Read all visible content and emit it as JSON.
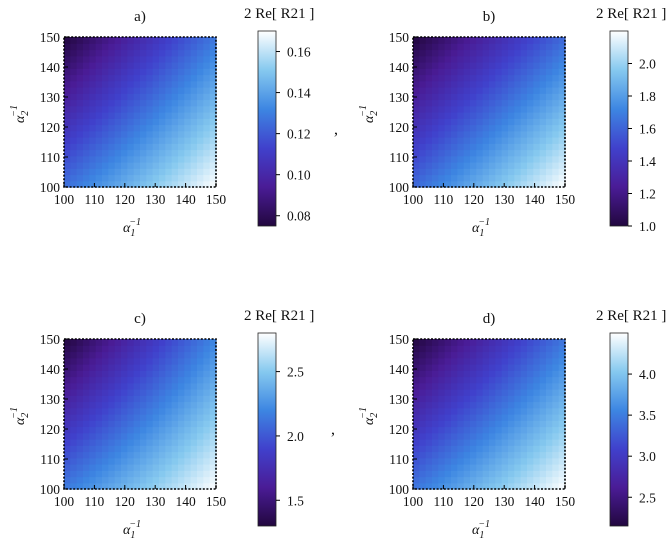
{
  "chart_data": [
    {
      "type": "heatmap",
      "title": "a)",
      "xlabel": "α₁⁻¹",
      "ylabel": "α₂⁻¹",
      "x_ticks": [
        100,
        110,
        120,
        130,
        140,
        150
      ],
      "y_ticks": [
        100,
        110,
        120,
        130,
        140,
        150
      ],
      "xlim": [
        100,
        150
      ],
      "ylim": [
        100,
        150
      ],
      "colorbar": {
        "title": "2 Re[ R21 ]",
        "range": [
          0.075,
          0.17
        ],
        "ticks": [
          "0.08",
          "0.10",
          "0.12",
          "0.14",
          "0.16"
        ],
        "tick_values": [
          0.08,
          0.1,
          0.12,
          0.14,
          0.16
        ]
      },
      "z_corners": {
        "x100_y100": 0.126,
        "x150_y100": 0.17,
        "x100_y150": 0.075,
        "x150_y150": 0.128
      }
    },
    {
      "type": "heatmap",
      "title": "b)",
      "xlabel": "α₁⁻¹",
      "ylabel": "α₂⁻¹",
      "x_ticks": [
        100,
        110,
        120,
        130,
        140,
        150
      ],
      "y_ticks": [
        100,
        110,
        120,
        130,
        140,
        150
      ],
      "xlim": [
        100,
        150
      ],
      "ylim": [
        100,
        150
      ],
      "colorbar": {
        "title": "2 Re[ R21 ]",
        "range": [
          1.0,
          2.2
        ],
        "ticks": [
          "1.0",
          "1.2",
          "1.4",
          "1.6",
          "1.8",
          "2.0"
        ],
        "tick_values": [
          1.0,
          1.2,
          1.4,
          1.6,
          1.8,
          2.0
        ]
      },
      "z_corners": {
        "x100_y100": 1.62,
        "x150_y100": 2.2,
        "x100_y150": 1.0,
        "x150_y150": 1.62
      }
    },
    {
      "type": "heatmap",
      "title": "c)",
      "xlabel": "α₁⁻¹",
      "ylabel": "α₂⁻¹",
      "x_ticks": [
        100,
        110,
        120,
        130,
        140,
        150
      ],
      "y_ticks": [
        100,
        110,
        120,
        130,
        140,
        150
      ],
      "xlim": [
        100,
        150
      ],
      "ylim": [
        100,
        150
      ],
      "colorbar": {
        "title": "2 Re[ R21 ]",
        "range": [
          1.3,
          2.8
        ],
        "ticks": [
          "1.5",
          "2.0",
          "2.5"
        ],
        "tick_values": [
          1.5,
          2.0,
          2.5
        ]
      },
      "z_corners": {
        "x100_y100": 2.15,
        "x150_y100": 2.8,
        "x100_y150": 1.3,
        "x150_y150": 2.2
      }
    },
    {
      "type": "heatmap",
      "title": "d)",
      "xlabel": "α₁⁻¹",
      "ylabel": "α₂⁻¹",
      "x_ticks": [
        100,
        110,
        120,
        130,
        140,
        150
      ],
      "y_ticks": [
        100,
        110,
        120,
        130,
        140,
        150
      ],
      "xlim": [
        100,
        150
      ],
      "ylim": [
        100,
        150
      ],
      "colorbar": {
        "title": "2 Re[ R21 ]",
        "range": [
          2.15,
          4.5
        ],
        "ticks": [
          "2.5",
          "3.0",
          "3.5",
          "4.0"
        ],
        "tick_values": [
          2.5,
          3.0,
          3.5,
          4.0
        ]
      },
      "z_corners": {
        "x100_y100": 3.45,
        "x150_y100": 4.5,
        "x100_y150": 2.15,
        "x150_y150": 3.45
      }
    }
  ],
  "separators": [
    ",",
    ","
  ],
  "colormap": [
    "#22073f",
    "#4a1c96",
    "#4041cc",
    "#3d86e2",
    "#86c9ef",
    "#ffffff"
  ]
}
